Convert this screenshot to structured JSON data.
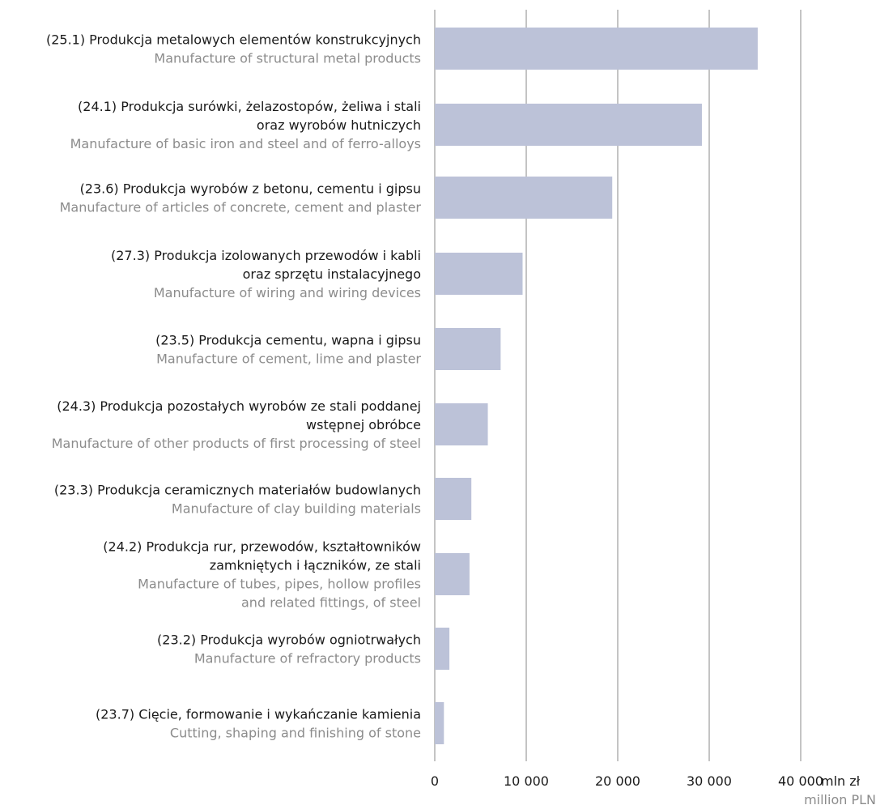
{
  "chart_data": {
    "type": "bar",
    "orientation": "horizontal",
    "categories": [
      {
        "pl": [
          "(25.1) Produkcja metalowych elementów konstrukcyjnych"
        ],
        "en": [
          "Manufacture of structural metal products"
        ]
      },
      {
        "pl": [
          "(24.1) Produkcja surówki, żelazostopów, żeliwa i stali",
          "oraz wyrobów hutniczych"
        ],
        "en": [
          "Manufacture of basic iron and steel and of ferro-alloys"
        ]
      },
      {
        "pl": [
          "(23.6) Produkcja wyrobów z betonu, cementu i gipsu"
        ],
        "en": [
          "Manufacture of articles of concrete, cement and plaster"
        ]
      },
      {
        "pl": [
          "(27.3) Produkcja izolowanych przewodów i kabli",
          "oraz sprzętu instalacyjnego"
        ],
        "en": [
          "Manufacture of wiring and wiring devices"
        ]
      },
      {
        "pl": [
          "(23.5) Produkcja cementu, wapna i gipsu"
        ],
        "en": [
          "Manufacture of cement, lime and plaster"
        ]
      },
      {
        "pl": [
          "(24.3) Produkcja pozostałych wyrobów ze stali poddanej",
          "wstępnej obróbce"
        ],
        "en": [
          "Manufacture of other products of first processing of steel"
        ]
      },
      {
        "pl": [
          "(23.3) Produkcja ceramicznych materiałów budowlanych"
        ],
        "en": [
          "Manufacture of clay building materials"
        ]
      },
      {
        "pl": [
          "(24.2) Produkcja rur, przewodów, kształtowników",
          "zamkniętych i łączników, ze stali"
        ],
        "en": [
          "Manufacture of tubes, pipes, hollow profiles",
          "and related fittings, of steel"
        ]
      },
      {
        "pl": [
          "(23.2) Produkcja wyrobów ogniotrwałych"
        ],
        "en": [
          "Manufacture of refractory products"
        ]
      },
      {
        "pl": [
          "(23.7) Cięcie, formowanie i wykańczanie kamienia"
        ],
        "en": [
          "Cutting, shaping and finishing of stone"
        ]
      }
    ],
    "values": [
      35300,
      29200,
      19400,
      9600,
      7200,
      5800,
      4000,
      3800,
      1600,
      1000
    ],
    "xlim": [
      0,
      40000
    ],
    "xticks": [
      0,
      10000,
      20000,
      30000,
      40000
    ],
    "xtick_labels": [
      "0",
      "10 000",
      "20 000",
      "30 000",
      "40 000"
    ],
    "unit_label_pl": "mln zł",
    "unit_label_en": "million PLN",
    "grid": "vertical",
    "bar_color": "#bcc2d8",
    "grid_color": "#8a8a8a"
  }
}
